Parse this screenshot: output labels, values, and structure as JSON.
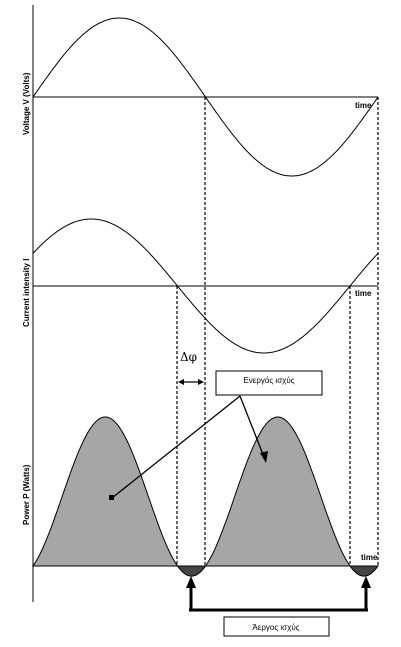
{
  "panels": {
    "voltage": {
      "ylabel": "Voltage V (Volts)",
      "xlabel": "time"
    },
    "current": {
      "ylabel": "Current intensity I",
      "xlabel": "time"
    },
    "power": {
      "ylabel": "Power P (Watts)",
      "xlabel": "time"
    }
  },
  "phase_shift": "Δφ",
  "active_power_label": "Ενεργός ισχύς",
  "reactive_power_label": "Άεργος ισχύς",
  "colors": {
    "power_fill": "#a6a6a6",
    "negative_fill": "#444444",
    "line": "#000000"
  }
}
